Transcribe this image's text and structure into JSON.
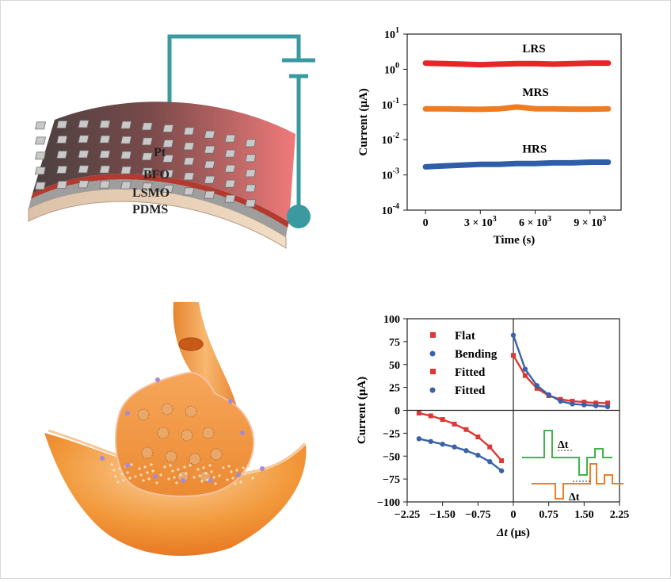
{
  "figure": {
    "device_layers": [
      "Pt",
      "BFO",
      "LSMO",
      "PDMS"
    ]
  },
  "chart_data": [
    {
      "type": "line",
      "xlabel": "Time (s)",
      "ylabel": "Current (μA)",
      "xlim": [
        -1000,
        10700
      ],
      "ylim": [
        0.0001,
        10
      ],
      "yscale": "log",
      "x_ticks": [
        0,
        3000,
        6000,
        9000
      ],
      "x_tick_labels": [
        {
          "base": "0",
          "exp": ""
        },
        {
          "base": "3 × 10",
          "exp": "3"
        },
        {
          "base": "6 × 10",
          "exp": "3"
        },
        {
          "base": "9 × 10",
          "exp": "3"
        }
      ],
      "y_ticks": [
        0.0001,
        0.001,
        0.01,
        0.1,
        1,
        10
      ],
      "y_tick_labels": [
        {
          "base": "10",
          "exp": "-4"
        },
        {
          "base": "10",
          "exp": "-3"
        },
        {
          "base": "10",
          "exp": "-2"
        },
        {
          "base": "10",
          "exp": "-1"
        },
        {
          "base": "10",
          "exp": "0"
        },
        {
          "base": "10",
          "exp": "1"
        }
      ],
      "series": [
        {
          "name": "LRS",
          "color": "#e8262a",
          "x": [
            0,
            1000,
            2000,
            3000,
            4000,
            5000,
            6000,
            7000,
            8000,
            9000,
            10000
          ],
          "y": [
            1.5,
            1.45,
            1.4,
            1.35,
            1.4,
            1.45,
            1.45,
            1.4,
            1.45,
            1.5,
            1.5
          ]
        },
        {
          "name": "MRS",
          "color": "#f07c22",
          "x": [
            0,
            1000,
            2000,
            3000,
            4000,
            5000,
            6000,
            7000,
            8000,
            9000,
            10000
          ],
          "y": [
            0.075,
            0.075,
            0.074,
            0.073,
            0.075,
            0.085,
            0.076,
            0.075,
            0.074,
            0.074,
            0.075
          ]
        },
        {
          "name": "HRS",
          "color": "#2f5da8",
          "x": [
            0,
            1000,
            2000,
            3000,
            4000,
            5000,
            6000,
            7000,
            8000,
            9000,
            10000
          ],
          "y": [
            0.0017,
            0.0018,
            0.0019,
            0.002,
            0.002,
            0.0021,
            0.0021,
            0.0022,
            0.0022,
            0.0023,
            0.0023
          ]
        }
      ],
      "grid": false,
      "legend": "none"
    },
    {
      "type": "scatter",
      "xlabel": "Δt (μs)",
      "xlabel_parts": {
        "var": "Δt",
        "unit": " (μs)"
      },
      "ylabel": "Current (μA)",
      "xlim": [
        -2.25,
        2.25
      ],
      "ylim": [
        -100,
        100
      ],
      "x_ticks": [
        -2.25,
        -1.5,
        -0.75,
        0,
        0.75,
        1.5,
        2.25
      ],
      "x_tick_labels": [
        "−2.25",
        "−1.50",
        "−0.75",
        "0",
        "0.75",
        "1.50",
        "2.25"
      ],
      "y_ticks": [
        -100,
        -75,
        -50,
        -25,
        0,
        25,
        50,
        75,
        100
      ],
      "y_tick_labels": [
        "−100",
        "−75",
        "−50",
        "−25",
        "0",
        "25",
        "50",
        "75",
        "100"
      ],
      "legend": "top-left",
      "legend_entries": [
        {
          "label": "Flat",
          "color": "#d93a35",
          "marker": "square"
        },
        {
          "label": "Bending",
          "color": "#3a62a8",
          "marker": "circle"
        },
        {
          "label": "Fitted",
          "color": "#d93a35",
          "marker": "square"
        },
        {
          "label": "Fitted",
          "color": "#3a62a8",
          "marker": "circle"
        }
      ],
      "series": [
        {
          "name": "Flat",
          "color": "#d93a35",
          "marker": "square",
          "x": [
            -2.0,
            -1.75,
            -1.5,
            -1.25,
            -1.0,
            -0.75,
            -0.5,
            -0.25,
            0.0,
            0.25,
            0.5,
            0.75,
            1.0,
            1.25,
            1.5,
            1.75,
            2.0
          ],
          "y": [
            -3,
            -6,
            -10,
            -15,
            -21,
            -29,
            -40,
            -55,
            60,
            38,
            24,
            16,
            12,
            10,
            9,
            8,
            8
          ]
        },
        {
          "name": "Bending",
          "color": "#3a62a8",
          "marker": "circle",
          "x": [
            -2.0,
            -1.75,
            -1.5,
            -1.25,
            -1.0,
            -0.75,
            -0.5,
            -0.25,
            0.0,
            0.25,
            0.5,
            0.75,
            1.0,
            1.25,
            1.5,
            1.75,
            2.0
          ],
          "y": [
            -31,
            -34,
            -37,
            -40,
            -44,
            -49,
            -56,
            -66,
            82,
            45,
            27,
            17,
            10,
            7,
            6,
            5,
            4
          ]
        }
      ],
      "inset": {
        "labels": [
          "Δt",
          "Δt"
        ],
        "colors": [
          "#3fb54a",
          "#f07c22"
        ]
      }
    }
  ]
}
